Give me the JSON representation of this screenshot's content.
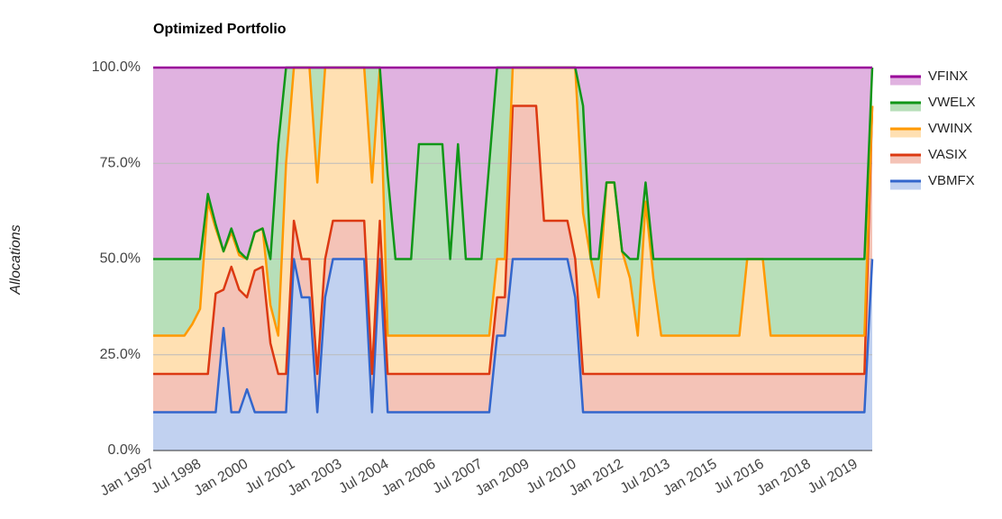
{
  "chart_data": {
    "type": "stacked-area",
    "title": "Optimized Portfolio",
    "y_label": "Allocations",
    "categories": [
      "Jan 1997",
      null,
      null,
      null,
      null,
      null,
      "Jul 1998",
      null,
      null,
      null,
      null,
      null,
      "Jan 2000",
      null,
      null,
      null,
      null,
      null,
      "Jul 2001",
      null,
      null,
      null,
      null,
      null,
      "Jan 2003",
      null,
      null,
      null,
      null,
      null,
      "Jul 2004",
      null,
      null,
      null,
      null,
      null,
      "Jan 2006",
      null,
      null,
      null,
      null,
      null,
      "Jul 2007",
      null,
      null,
      null,
      null,
      null,
      "Jan 2009",
      null,
      null,
      null,
      null,
      null,
      "Jul 2010",
      null,
      null,
      null,
      null,
      null,
      "Jan 2012",
      null,
      null,
      null,
      null,
      null,
      "Jul 2013",
      null,
      null,
      null,
      null,
      null,
      "Jan 2015",
      null,
      null,
      null,
      null,
      null,
      "Jul 2016",
      null,
      null,
      null,
      null,
      null,
      "Jan 2018",
      null,
      null,
      null,
      null,
      null,
      "Jul 2019",
      null,
      null
    ],
    "series": [
      {
        "name": "VBMFX",
        "color": "#3366cc",
        "values": [
          10,
          10,
          10,
          10,
          10,
          10,
          10,
          10,
          10,
          32,
          10,
          10,
          16,
          10,
          10,
          10,
          10,
          10,
          50,
          40,
          40,
          10,
          40,
          50,
          50,
          50,
          50,
          50,
          10,
          50,
          10,
          10,
          10,
          10,
          10,
          10,
          10,
          10,
          10,
          10,
          10,
          10,
          10,
          10,
          30,
          30,
          50,
          50,
          50,
          50,
          50,
          50,
          50,
          50,
          40,
          10,
          10,
          10,
          10,
          10,
          10,
          10,
          10,
          10,
          10,
          10,
          10,
          10,
          10,
          10,
          10,
          10,
          10,
          10,
          10,
          10,
          10,
          10,
          10,
          10,
          10,
          10,
          10,
          10,
          10,
          10,
          10,
          10,
          10,
          10,
          10,
          10,
          50
        ]
      },
      {
        "name": "VASIX",
        "color": "#dc3912",
        "values": [
          10,
          10,
          10,
          10,
          10,
          10,
          10,
          10,
          31,
          10,
          38,
          32,
          24,
          37,
          38,
          18,
          10,
          10,
          10,
          10,
          10,
          10,
          10,
          10,
          10,
          10,
          10,
          10,
          10,
          10,
          10,
          10,
          10,
          10,
          10,
          10,
          10,
          10,
          10,
          10,
          10,
          10,
          10,
          10,
          10,
          10,
          40,
          40,
          40,
          40,
          10,
          10,
          10,
          10,
          10,
          10,
          10,
          10,
          10,
          10,
          10,
          10,
          10,
          10,
          10,
          10,
          10,
          10,
          10,
          10,
          10,
          10,
          10,
          10,
          10,
          10,
          10,
          10,
          10,
          10,
          10,
          10,
          10,
          10,
          10,
          10,
          10,
          10,
          10,
          10,
          10,
          10,
          40
        ]
      },
      {
        "name": "VWINX",
        "color": "#ff9900",
        "values": [
          10,
          10,
          10,
          10,
          10,
          13,
          17,
          45,
          17,
          10,
          9,
          9,
          10,
          10,
          10,
          10,
          10,
          55,
          40,
          50,
          50,
          50,
          50,
          40,
          40,
          40,
          40,
          40,
          50,
          40,
          10,
          10,
          10,
          10,
          10,
          10,
          10,
          10,
          10,
          10,
          10,
          10,
          10,
          10,
          10,
          10,
          10,
          10,
          10,
          10,
          40,
          40,
          40,
          40,
          50,
          42,
          30,
          20,
          50,
          50,
          32,
          25,
          10,
          45,
          25,
          10,
          10,
          10,
          10,
          10,
          10,
          10,
          10,
          10,
          10,
          10,
          30,
          30,
          30,
          10,
          10,
          10,
          10,
          10,
          10,
          10,
          10,
          10,
          10,
          10,
          10,
          10,
          0
        ]
      },
      {
        "name": "VWELX",
        "color": "#109618",
        "values": [
          20,
          20,
          20,
          20,
          20,
          17,
          13,
          2,
          1,
          0,
          1,
          1,
          0,
          0,
          0,
          12,
          50,
          25,
          0,
          0,
          0,
          30,
          0,
          0,
          0,
          0,
          0,
          0,
          30,
          0,
          42,
          20,
          20,
          20,
          50,
          50,
          50,
          50,
          20,
          50,
          20,
          20,
          20,
          45,
          50,
          50,
          0,
          0,
          0,
          0,
          0,
          0,
          0,
          0,
          0,
          28,
          0,
          10,
          0,
          0,
          0,
          5,
          20,
          5,
          5,
          20,
          20,
          20,
          20,
          20,
          20,
          20,
          20,
          20,
          20,
          20,
          0,
          0,
          0,
          20,
          20,
          20,
          20,
          20,
          20,
          20,
          20,
          20,
          20,
          20,
          20,
          20,
          10
        ]
      },
      {
        "name": "VFINX",
        "color": "#990099",
        "values": [
          50,
          50,
          50,
          50,
          50,
          50,
          50,
          33,
          41,
          48,
          42,
          48,
          50,
          43,
          42,
          50,
          20,
          0,
          0,
          0,
          0,
          0,
          0,
          0,
          0,
          0,
          0,
          0,
          0,
          0,
          28,
          50,
          50,
          50,
          20,
          20,
          20,
          20,
          50,
          20,
          50,
          50,
          50,
          25,
          0,
          0,
          0,
          0,
          0,
          0,
          0,
          0,
          0,
          0,
          0,
          10,
          50,
          50,
          30,
          30,
          48,
          50,
          50,
          30,
          50,
          50,
          50,
          50,
          50,
          50,
          50,
          50,
          50,
          50,
          50,
          50,
          50,
          50,
          50,
          50,
          50,
          50,
          50,
          50,
          50,
          50,
          50,
          50,
          50,
          50,
          50,
          50,
          0
        ]
      }
    ],
    "ylim": [
      0,
      100
    ],
    "yticks": [
      {
        "value": 0,
        "label": "0.0%"
      },
      {
        "value": 25,
        "label": "25.0%"
      },
      {
        "value": 50,
        "label": "50.0%"
      },
      {
        "value": 75,
        "label": "75.0%"
      },
      {
        "value": 100,
        "label": "100.0%"
      }
    ],
    "grid": true,
    "legend": "right"
  }
}
